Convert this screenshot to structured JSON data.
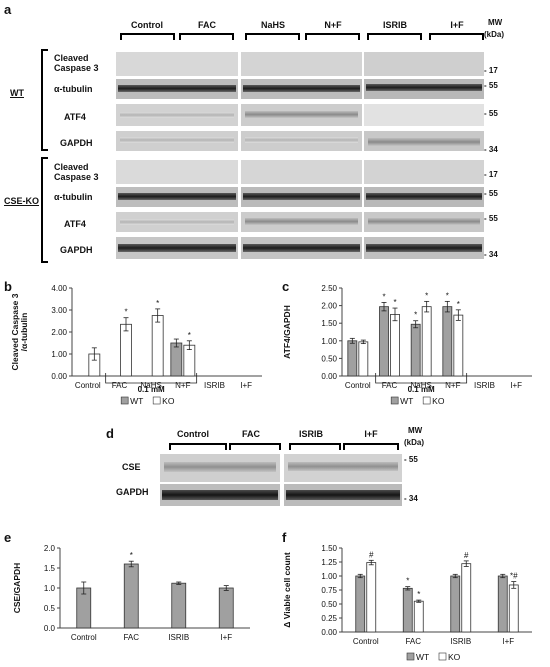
{
  "panel_a": {
    "letter": "a",
    "mw_label": "MW",
    "kda_label": "(kDa)",
    "groups": [
      "Control",
      "FAC",
      "NaHS",
      "N+F",
      "ISRIB",
      "I+F"
    ],
    "wt_label": "WT",
    "ko_label": "CSE-KO",
    "rows_wt": [
      "Cleaved Caspase 3",
      "α-tubulin",
      "ATF4",
      "GAPDH"
    ],
    "rows_ko": [
      "Cleaved Caspase 3",
      "α-tubulin",
      "ATF4",
      "GAPDH"
    ],
    "mw_wt": [
      "- 17",
      "- 55",
      "- 55",
      "- 34"
    ],
    "mw_ko": [
      "- 17",
      "- 55",
      "- 55",
      "- 34"
    ]
  },
  "panel_b": {
    "letter": "b",
    "dose_label": "0.1 mM",
    "legend_wt": "WT",
    "legend_ko": "KO"
  },
  "panel_c": {
    "letter": "c",
    "dose_label": "0.1 mM",
    "legend_wt": "WT",
    "legend_ko": "KO"
  },
  "panel_d": {
    "letter": "d",
    "groups": [
      "Control",
      "FAC",
      "ISRIB",
      "I+F"
    ],
    "rows": [
      "CSE",
      "GAPDH"
    ],
    "mw_label": "MW",
    "kda_label": "(kDa)",
    "mw_values": [
      "- 55",
      "- 34"
    ]
  },
  "panel_e": {
    "letter": "e"
  },
  "panel_f": {
    "letter": "f",
    "legend_wt": "WT",
    "legend_ko": "KO"
  },
  "chart_data": [
    {
      "type": "bar",
      "panel": "b",
      "ylabel": "Cleaved Caspase 3 /α-tubulin",
      "categories": [
        "Control",
        "FAC",
        "NaHS",
        "N+F",
        "ISRIB",
        "I+F"
      ],
      "ylim": [
        0,
        4
      ],
      "yticks": [
        "0.00",
        "1.00",
        "2.00",
        "3.00",
        "4.00"
      ],
      "series": [
        {
          "name": "WT",
          "values": [
            null,
            null,
            null,
            1.5,
            null,
            null
          ],
          "errors": [
            null,
            null,
            null,
            0.18,
            null,
            null
          ],
          "color": "#a0a0a0"
        },
        {
          "name": "KO",
          "values": [
            1.0,
            2.35,
            2.75,
            1.4,
            null,
            null
          ],
          "errors": [
            0.28,
            0.3,
            0.3,
            0.2,
            null,
            null
          ],
          "color": "#ffffff"
        }
      ],
      "stars": [
        "",
        "*",
        "*",
        "*",
        "",
        ""
      ]
    },
    {
      "type": "bar",
      "panel": "c",
      "ylabel": "ATF4/GAPDH",
      "categories": [
        "Control",
        "FAC",
        "NaHS",
        "N+F",
        "ISRIB",
        "I+F"
      ],
      "ylim": [
        0,
        2.5
      ],
      "yticks": [
        "0.00",
        "0.50",
        "1.00",
        "1.50",
        "2.00",
        "2.50"
      ],
      "series": [
        {
          "name": "WT",
          "values": [
            1.0,
            1.97,
            1.47,
            1.97,
            null,
            null
          ],
          "errors": [
            0.07,
            0.12,
            0.1,
            0.15,
            null,
            null
          ],
          "color": "#a0a0a0"
        },
        {
          "name": "KO",
          "values": [
            0.97,
            1.75,
            1.97,
            1.73,
            null,
            null
          ],
          "errors": [
            0.05,
            0.18,
            0.15,
            0.15,
            null,
            null
          ],
          "color": "#ffffff"
        }
      ],
      "stars": [
        [
          "",
          ""
        ],
        [
          "*",
          "*"
        ],
        [
          "*",
          "*"
        ],
        [
          "*",
          "*"
        ],
        [
          "",
          ""
        ],
        [
          "",
          ""
        ]
      ]
    },
    {
      "type": "bar",
      "panel": "e",
      "ylabel": "CSE/GAPDH",
      "categories": [
        "Control",
        "FAC",
        "ISRIB",
        "I+F"
      ],
      "ylim": [
        0,
        2
      ],
      "yticks": [
        "0.0",
        "0.5",
        "1.0",
        "1.5",
        "2.0"
      ],
      "series": [
        {
          "values": [
            1.0,
            1.6,
            1.12,
            1.0
          ],
          "errors": [
            0.15,
            0.07,
            0.03,
            0.06
          ],
          "color": "#a0a0a0"
        }
      ],
      "stars": [
        "",
        "*",
        "",
        ""
      ]
    },
    {
      "type": "bar",
      "panel": "f",
      "ylabel": "Δ Viable cell count",
      "categories": [
        "Control",
        "FAC",
        "ISRIB",
        "I+F"
      ],
      "ylim": [
        0,
        1.5
      ],
      "yticks": [
        "0.00",
        "0.25",
        "0.50",
        "0.75",
        "1.00",
        "1.25",
        "1.50"
      ],
      "series": [
        {
          "name": "WT",
          "values": [
            1.0,
            0.78,
            1.0,
            1.0
          ],
          "errors": [
            0.03,
            0.03,
            0.03,
            0.03
          ],
          "color": "#a0a0a0"
        },
        {
          "name": "KO",
          "values": [
            1.24,
            0.55,
            1.22,
            0.84
          ],
          "errors": [
            0.04,
            0.02,
            0.05,
            0.06
          ],
          "color": "#ffffff"
        }
      ],
      "stars": [
        [
          "",
          "#"
        ],
        [
          "*",
          "*"
        ],
        [
          "",
          "#"
        ],
        [
          "",
          "*#"
        ]
      ]
    }
  ]
}
